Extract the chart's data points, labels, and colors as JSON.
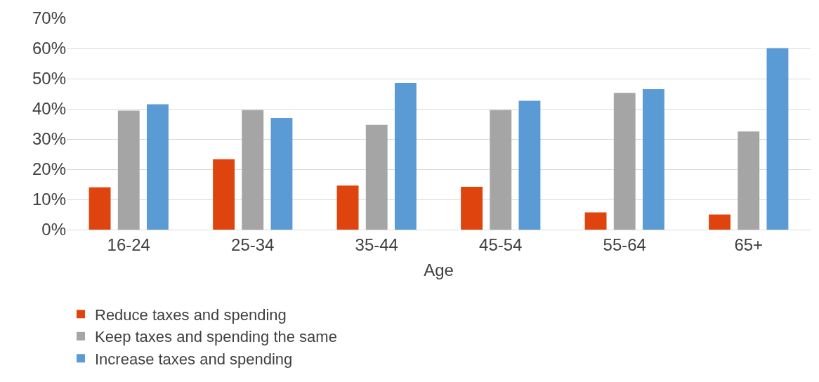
{
  "chart_data": {
    "type": "bar",
    "xlabel": "Age",
    "categories": [
      "16-24",
      "25-34",
      "35-44",
      "45-54",
      "55-64",
      "65+"
    ],
    "series": [
      {
        "name": "Reduce taxes and spending",
        "color": "#e0440e",
        "values": [
          14,
          23.3,
          14.6,
          14.2,
          5.7,
          5
        ]
      },
      {
        "name": "Keep taxes and spending the same",
        "color": "#a5a5a5",
        "values": [
          39.4,
          39.6,
          34.7,
          39.6,
          45.3,
          32.5
        ]
      },
      {
        "name": "Increase taxes and spending",
        "color": "#5b9bd5",
        "values": [
          41.5,
          37,
          48.6,
          42.7,
          46.5,
          60.1
        ]
      }
    ],
    "ylim": [
      0,
      70
    ],
    "yticks": [
      {
        "value": 0,
        "label": "0%"
      },
      {
        "value": 10,
        "label": "10%"
      },
      {
        "value": 20,
        "label": "20%"
      },
      {
        "value": 30,
        "label": "30%"
      },
      {
        "value": 40,
        "label": "40%"
      },
      {
        "value": 50,
        "label": "50%"
      },
      {
        "value": 60,
        "label": "60%"
      },
      {
        "value": 70,
        "label": "70%"
      }
    ],
    "grid": "y",
    "legend": "bottom"
  }
}
